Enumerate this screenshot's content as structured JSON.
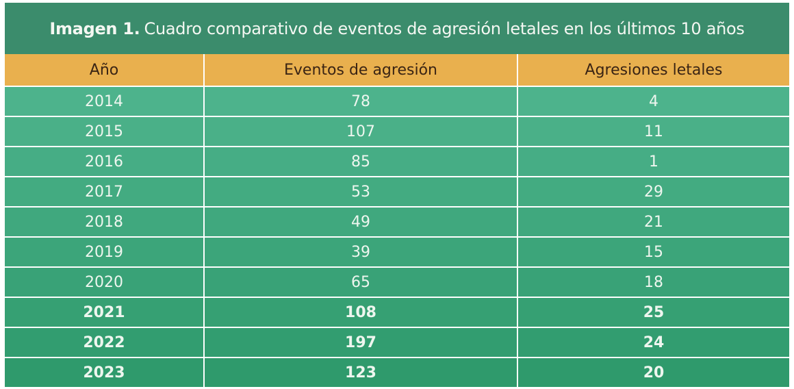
{
  "title": {
    "bold": "Imagen 1.",
    "text": "Cuadro comparativo de eventos de agresión letales en los últimos 10 años"
  },
  "colors": {
    "title_bg": "#3b8c6c",
    "header_bg": "#e9b04e",
    "row_bg_top": "#4db38c",
    "row_bg_bottom": "#2f9a6c"
  },
  "chart_data": {
    "type": "table",
    "title": "Imagen 1. Cuadro comparativo de eventos de agresión letales en los últimos 10 años",
    "columns": [
      "Año",
      "Eventos de agresión",
      "Agresiones letales"
    ],
    "rows": [
      {
        "year": "2014",
        "events": "78",
        "lethal": "4",
        "bold": false
      },
      {
        "year": "2015",
        "events": "107",
        "lethal": "11",
        "bold": false
      },
      {
        "year": "2016",
        "events": "85",
        "lethal": "1",
        "bold": false
      },
      {
        "year": "2017",
        "events": "53",
        "lethal": "29",
        "bold": false
      },
      {
        "year": "2018",
        "events": "49",
        "lethal": "21",
        "bold": false
      },
      {
        "year": "2019",
        "events": "39",
        "lethal": "15",
        "bold": false
      },
      {
        "year": "2020",
        "events": "65",
        "lethal": "18",
        "bold": false
      },
      {
        "year": "2021",
        "events": "108",
        "lethal": "25",
        "bold": true
      },
      {
        "year": "2022",
        "events": "197",
        "lethal": "24",
        "bold": true
      },
      {
        "year": "2023",
        "events": "123",
        "lethal": "20",
        "bold": true
      }
    ]
  }
}
